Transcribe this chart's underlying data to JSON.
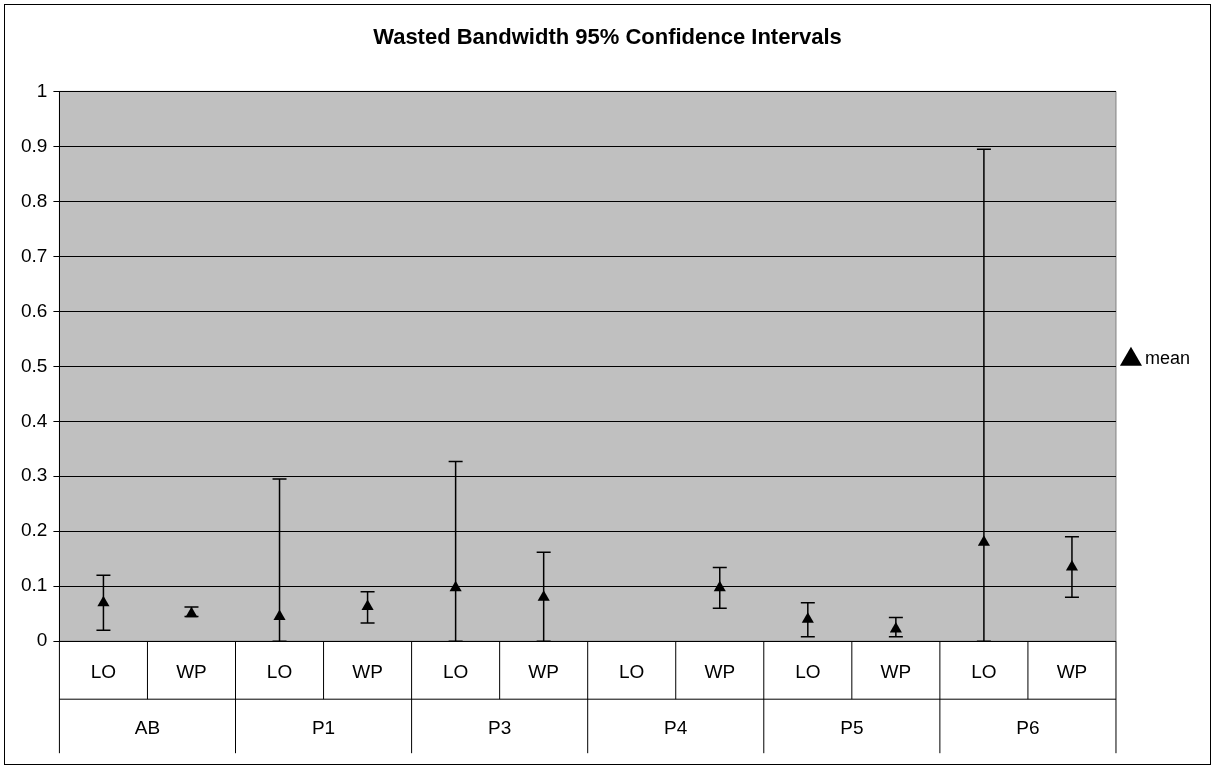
{
  "chart_data": {
    "type": "scatter",
    "title": "Wasted Bandwidth 95% Confidence Intervals",
    "categories": [
      "LO",
      "WP",
      "LO",
      "WP",
      "LO",
      "WP",
      "LO",
      "WP",
      "LO",
      "WP",
      "LO",
      "WP"
    ],
    "annotations": [
      "AB",
      "P1",
      "P3",
      "P4",
      "P5",
      "P6"
    ],
    "series": [
      {
        "name": "mean",
        "color": "#000000",
        "values": [
          0.07,
          0.05,
          0.045,
          0.063,
          0.097,
          0.08,
          null,
          0.097,
          0.04,
          0.022,
          0.18,
          0.135
        ],
        "errors": [
          [
            0.02,
            0.12
          ],
          [
            0.045,
            0.062
          ],
          [
            0,
            0.295
          ],
          [
            0.033,
            0.09
          ],
          [
            0,
            0.327
          ],
          [
            0,
            0.162
          ],
          null,
          [
            0.06,
            0.134
          ],
          [
            0.008,
            0.07
          ],
          [
            0.008,
            0.043
          ],
          [
            0,
            0.895
          ],
          [
            0.08,
            0.19
          ]
        ]
      }
    ],
    "ylim": [
      0,
      1
    ],
    "yticks": [
      0,
      0.1,
      0.2,
      0.3,
      0.4,
      0.5,
      0.6,
      0.7,
      0.8,
      0.9,
      1
    ],
    "grid": "y",
    "legend": "right",
    "marker": "triangle"
  }
}
